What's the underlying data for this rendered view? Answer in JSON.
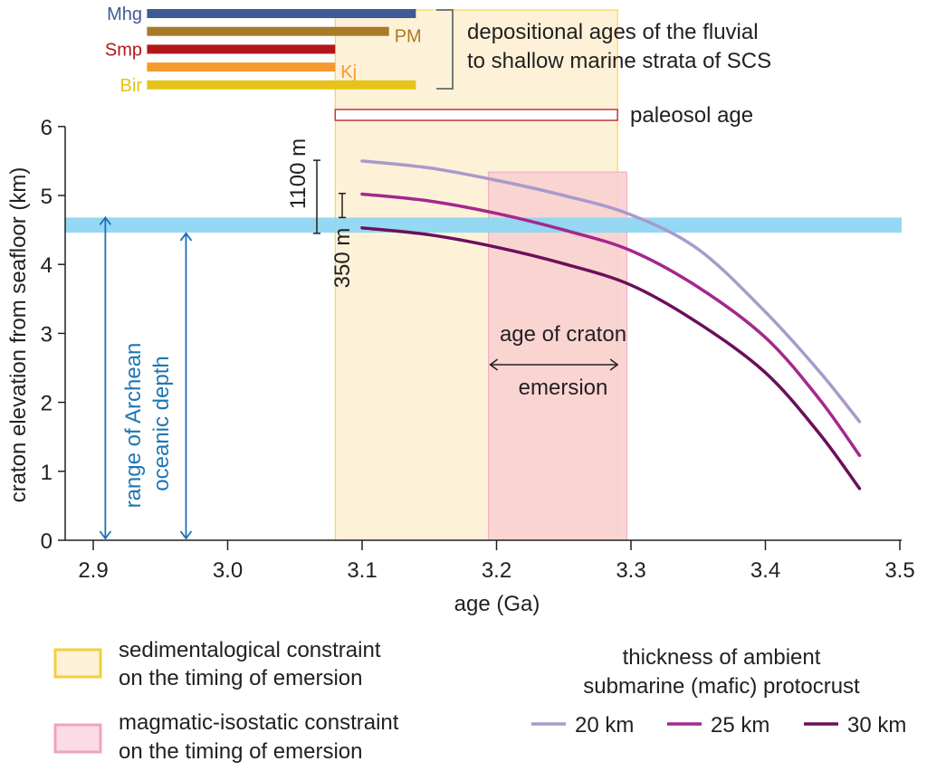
{
  "chart_data": {
    "type": "line",
    "title": "",
    "xlabel": "age (Ga)",
    "ylabel": "craton elevation from seafloor  (km)",
    "xlim": [
      2.88,
      3.5
    ],
    "ylim": [
      0,
      6
    ],
    "xticks": [
      2.9,
      3.0,
      3.1,
      3.2,
      3.3,
      3.4,
      3.5
    ],
    "xtick_labels": [
      "2.9",
      "3.0",
      "3.1",
      "3.2",
      "3.3",
      "3.4",
      "3.5"
    ],
    "yticks": [
      0,
      1,
      2,
      3,
      4,
      5,
      6
    ],
    "ytick_labels": [
      "0",
      "1",
      "2",
      "3",
      "4",
      "5",
      "6"
    ],
    "grid": false,
    "series": [
      {
        "name": "20 km",
        "label": "20 km",
        "color": "#a99acb",
        "x": [
          3.1,
          3.15,
          3.2,
          3.25,
          3.3,
          3.35,
          3.4,
          3.44,
          3.47
        ],
        "y": [
          5.5,
          5.4,
          5.22,
          5.0,
          4.72,
          4.22,
          3.31,
          2.45,
          1.72
        ]
      },
      {
        "name": "25 km",
        "label": "25 km",
        "color": "#a3288d",
        "x": [
          3.1,
          3.15,
          3.2,
          3.25,
          3.3,
          3.35,
          3.4,
          3.44,
          3.47
        ],
        "y": [
          5.02,
          4.92,
          4.74,
          4.5,
          4.2,
          3.67,
          2.94,
          2.05,
          1.23
        ]
      },
      {
        "name": "30 km",
        "label": "30 km",
        "color": "#6b0f5a",
        "x": [
          3.1,
          3.15,
          3.2,
          3.25,
          3.3,
          3.35,
          3.4,
          3.44,
          3.47
        ],
        "y": [
          4.53,
          4.43,
          4.25,
          4.01,
          3.7,
          3.15,
          2.43,
          1.55,
          0.75
        ]
      }
    ],
    "legend": {
      "title_line1": "thickness of ambient",
      "title_line2": "submarine (mafic) protocrust",
      "placement": "bottom-right"
    },
    "bands": {
      "sedimentological": {
        "x": [
          3.08,
          3.29
        ],
        "color": "#fdf2d8",
        "border": "#f2cf3b"
      },
      "magmatic": {
        "x": [
          3.194,
          3.297
        ],
        "ytop": 5.34,
        "color": "#f8d0d0",
        "border": "#f0a8c0"
      },
      "ocean_depth": {
        "y": [
          4.46,
          4.68
        ],
        "color": "#8fd6f2"
      }
    },
    "depositional_bars": [
      {
        "name": "Mhg",
        "x": [
          2.94,
          3.14
        ],
        "color": "#3f5a94",
        "label_side": "left"
      },
      {
        "name": "PM",
        "x": [
          2.94,
          3.12
        ],
        "color": "#a97a28",
        "label_side": "right"
      },
      {
        "name": "Smp",
        "x": [
          2.94,
          3.08
        ],
        "color": "#b5161b",
        "label_side": "left"
      },
      {
        "name": "Kj",
        "x": [
          2.94,
          3.08
        ],
        "color": "#f59a2e",
        "label_side": "right"
      },
      {
        "name": "Bir",
        "x": [
          2.94,
          3.14
        ],
        "color": "#e6c319",
        "label_side": "left"
      }
    ],
    "depositional_caption": [
      "depositional ages of the fluvial",
      "to shallow marine strata of SCS"
    ],
    "paleosol": {
      "x": [
        3.08,
        3.29
      ],
      "label": "paleosol age",
      "color": "#c8333a"
    },
    "annotations": {
      "bracket_1100": {
        "label": "1100 m",
        "y": [
          4.45,
          5.51
        ]
      },
      "bracket_350": {
        "label": "350 m",
        "y": [
          4.68,
          5.03
        ]
      },
      "emergence": {
        "line1": "age of craton",
        "line2": "emersion",
        "x": [
          3.194,
          3.29
        ]
      },
      "ocean_depth_text": [
        "range of Archean",
        "oceanic depth"
      ],
      "arrow1": {
        "x": 2.909,
        "y": [
          0,
          4.68
        ]
      },
      "arrow2": {
        "x": 2.969,
        "y": [
          0,
          4.45
        ]
      }
    },
    "region_legend": [
      {
        "line1": "sedimentalogical constraint",
        "line2": "on the timing of emersion",
        "fill": "#fdf2d8",
        "border": "#f2cf3b"
      },
      {
        "line1": "magmatic-isostatic constraint",
        "line2": "on the timing of emersion",
        "fill": "#fadbe6",
        "border": "#eea3c2"
      }
    ]
  }
}
